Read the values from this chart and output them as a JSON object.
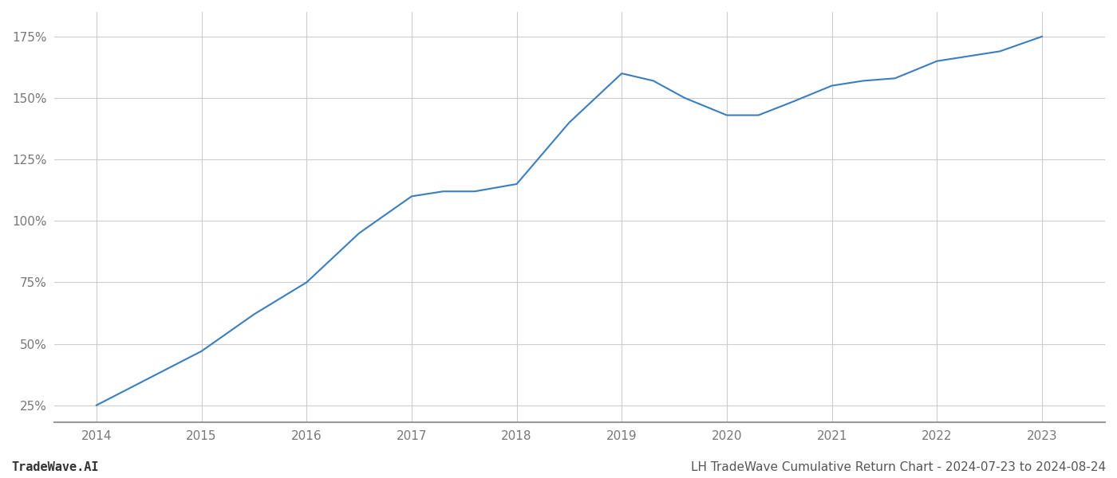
{
  "x": [
    2014,
    2014.5,
    2015,
    2015.5,
    2016,
    2016.5,
    2017,
    2017.3,
    2017.6,
    2018,
    2018.5,
    2019,
    2019.3,
    2019.6,
    2020,
    2020.3,
    2020.6,
    2021,
    2021.3,
    2021.6,
    2022,
    2022.3,
    2022.6,
    2023
  ],
  "y": [
    25,
    36,
    47,
    62,
    75,
    95,
    110,
    112,
    112,
    115,
    140,
    160,
    157,
    150,
    143,
    143,
    148,
    155,
    157,
    158,
    165,
    167,
    169,
    175
  ],
  "line_color": "#3a7ebf",
  "line_width": 1.5,
  "title": "LH TradeWave Cumulative Return Chart - 2024-07-23 to 2024-08-24",
  "watermark": "TradeWave.AI",
  "ylabel_ticks": [
    25,
    50,
    75,
    100,
    125,
    150,
    175
  ],
  "xtick_labels": [
    "2014",
    "2015",
    "2016",
    "2017",
    "2018",
    "2019",
    "2020",
    "2021",
    "2022",
    "2023"
  ],
  "xtick_values": [
    2014,
    2015,
    2016,
    2017,
    2018,
    2019,
    2020,
    2021,
    2022,
    2023
  ],
  "xlim": [
    2013.6,
    2023.6
  ],
  "ylim": [
    18,
    185
  ],
  "background_color": "#ffffff",
  "grid_color": "#cccccc",
  "title_fontsize": 11,
  "tick_fontsize": 11,
  "watermark_fontsize": 11,
  "spine_color": "#999999"
}
